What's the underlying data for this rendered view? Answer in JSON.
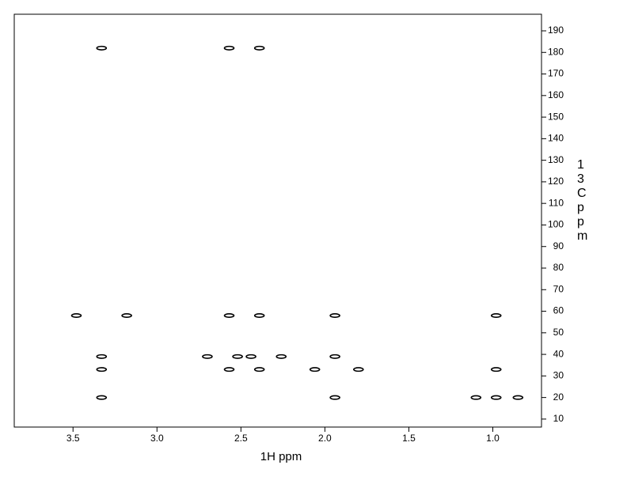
{
  "chart_data": {
    "type": "scatter",
    "x_label": "1H ppm",
    "y_label": "13C ppm",
    "xlim": [
      3.85,
      0.71
    ],
    "ylim": [
      197.7,
      6.3
    ],
    "xticks": [
      {
        "value": 3.5,
        "label": "3.5"
      },
      {
        "value": 3.0,
        "label": "3.0"
      },
      {
        "value": 2.5,
        "label": "2.5"
      },
      {
        "value": 2.0,
        "label": "2.0"
      },
      {
        "value": 1.5,
        "label": "1.5"
      },
      {
        "value": 1.0,
        "label": "1.0"
      }
    ],
    "yticks": [
      10,
      20,
      30,
      40,
      50,
      60,
      70,
      80,
      90,
      100,
      110,
      120,
      130,
      140,
      150,
      160,
      170,
      180,
      190
    ],
    "color": "#000000",
    "x": [
      3.33,
      3.33,
      3.33,
      3.33,
      3.48,
      3.18,
      2.57,
      2.57,
      2.57,
      2.7,
      2.52,
      2.44,
      2.39,
      2.39,
      2.39,
      2.26,
      2.06,
      1.94,
      1.94,
      1.94,
      1.8,
      1.1,
      0.98,
      0.98,
      0.98,
      0.85
    ],
    "values": [
      20,
      33,
      39,
      182,
      58,
      58,
      33,
      58,
      182,
      39,
      39,
      39,
      33,
      58,
      182,
      39,
      33,
      20,
      39,
      58,
      33,
      20,
      20,
      33,
      58,
      20
    ]
  }
}
